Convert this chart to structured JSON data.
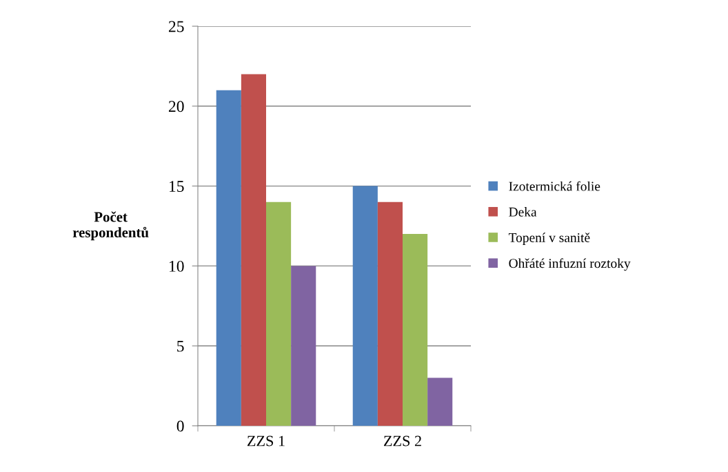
{
  "chart_data": {
    "type": "bar",
    "ylabel": "Počet\nrespondentů",
    "categories": [
      "ZZS 1",
      "ZZS 2"
    ],
    "series": [
      {
        "name": "Izotermická folie",
        "color": "#4f81bd",
        "values": [
          21,
          15
        ]
      },
      {
        "name": "Deka",
        "color": "#c0504d",
        "values": [
          22,
          14
        ]
      },
      {
        "name": "Topení v sanitě",
        "color": "#9bbb59",
        "values": [
          14,
          12
        ]
      },
      {
        "name": "Ohřáté infuzní roztoky",
        "color": "#8064a2",
        "values": [
          10,
          3
        ]
      }
    ],
    "ylim": [
      0,
      25
    ],
    "yticks": [
      0,
      5,
      10,
      15,
      20,
      25
    ],
    "grid": "y",
    "legend": "right"
  }
}
